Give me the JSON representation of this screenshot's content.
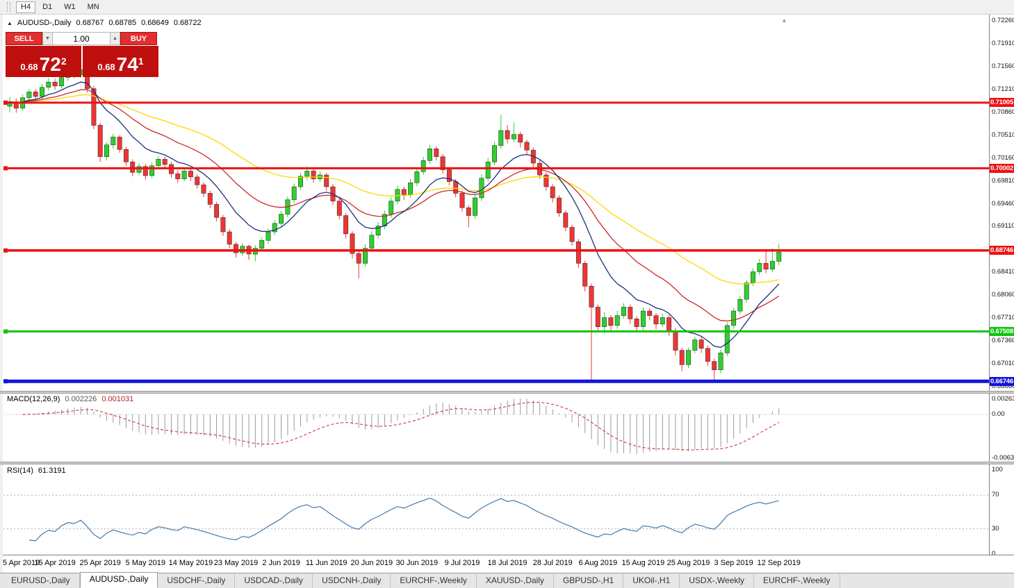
{
  "toolbar": {
    "timeframes": [
      "H4",
      "D1",
      "W1",
      "MN"
    ],
    "boxed_timeframe": "H4"
  },
  "glyphs": {
    "collapse": "▲",
    "spinner_down": "▼",
    "spinner_up": "▲",
    "mini_collapse": "▴"
  },
  "chart_header": {
    "symbol": "AUDUSD-,Daily",
    "open": "0.68767",
    "high": "0.68785",
    "low": "0.68649",
    "close": "0.68722"
  },
  "trade_panel": {
    "sell_label": "SELL",
    "buy_label": "BUY",
    "volume": "1.00",
    "sell_price_small": "0.68",
    "sell_price_big": "72",
    "sell_price_sup": "2",
    "buy_price_small": "0.68",
    "buy_price_big": "74",
    "buy_price_sup": "1"
  },
  "colors": {
    "up": "#2fcf2f",
    "down": "#ef3535",
    "ma_fast": "#1c2e7b",
    "ma_mid": "#cc2929",
    "ma_slow": "#ffd800",
    "macd_hist": "#9a9a9a",
    "macd_signal": "#cc3333",
    "rsi": "#4579a8",
    "line_red": "#ee1111",
    "line_green": "#0fc40f",
    "line_blue": "#1313dd"
  },
  "hlines": [
    {
      "price": 0.71005,
      "label": "0.71005",
      "color": "#ee1111",
      "width": 3
    },
    {
      "price": 0.70002,
      "label": "0.70002",
      "color": "#ee1111",
      "width": 3
    },
    {
      "price": 0.68746,
      "label": "0.68746",
      "color": "#ee1111",
      "width": 3.5
    },
    {
      "price": 0.67508,
      "label": "0.67508",
      "color": "#0fc40f",
      "width": 3
    },
    {
      "price": 0.66746,
      "label": "0.66746",
      "color": "#1313dd",
      "width": 5
    }
  ],
  "price_axis": {
    "labels": [
      "0.72260",
      "0.71910",
      "0.71560",
      "0.71210",
      "0.70860",
      "0.70510",
      "0.70160",
      "0.69810",
      "0.69460",
      "0.69110",
      "0.68760",
      "0.68410",
      "0.68060",
      "0.67710",
      "0.67360",
      "0.67010",
      "0.66660"
    ]
  },
  "macd_panel": {
    "label": "MACD(12,26,9)",
    "value_main": "0.002226",
    "value_signal": "0.001031",
    "axis_labels": [
      "0.00263",
      "0.00",
      "-0.00632"
    ]
  },
  "rsi_panel": {
    "label": "RSI(14)",
    "value": "61.3191",
    "axis_labels": [
      "100",
      "70",
      "30",
      "0"
    ],
    "levels": [
      70,
      30
    ]
  },
  "chart_data": {
    "type": "candlestick",
    "symbol": "AUDUSD",
    "timeframe": "Daily",
    "price_min": 0.666,
    "price_max": 0.7232,
    "price_scale_divisor": 10000,
    "date_labels": [
      "5 Apr 2019",
      "15 Apr 2019",
      "25 Apr 2019",
      "5 May 2019",
      "14 May 2019",
      "23 May 2019",
      "2 Jun 2019",
      "11 Jun 2019",
      "20 Jun 2019",
      "30 Jun 2019",
      "9 Jul 2019",
      "18 Jul 2019",
      "28 Jul 2019",
      "6 Aug 2019",
      "15 Aug 2019",
      "25 Aug 2019",
      "3 Sep 2019",
      "12 Sep 2019"
    ],
    "bars_per_label": 7,
    "moving_averages": [
      {
        "period": 45,
        "color_key": "ma_slow"
      },
      {
        "period": 22,
        "color_key": "ma_mid"
      },
      {
        "period": 10,
        "color_key": "ma_fast"
      }
    ],
    "candles": [
      [
        7095,
        7109,
        7086,
        7102
      ],
      [
        7102,
        7107,
        7085,
        7092
      ],
      [
        7092,
        7113,
        7088,
        7108
      ],
      [
        7108,
        7122,
        7103,
        7117
      ],
      [
        7117,
        7121,
        7103,
        7110
      ],
      [
        7110,
        7129,
        7106,
        7124
      ],
      [
        7124,
        7138,
        7119,
        7132
      ],
      [
        7132,
        7137,
        7120,
        7126
      ],
      [
        7126,
        7144,
        7122,
        7139
      ],
      [
        7139,
        7152,
        7134,
        7147
      ],
      [
        7147,
        7153,
        7138,
        7143
      ],
      [
        7143,
        7158,
        7139,
        7151
      ],
      [
        7151,
        7154,
        7116,
        7122
      ],
      [
        7122,
        7126,
        7060,
        7066
      ],
      [
        7066,
        7070,
        7010,
        7018
      ],
      [
        7018,
        7040,
        7012,
        7036
      ],
      [
        7036,
        7053,
        7030,
        7048
      ],
      [
        7048,
        7051,
        7024,
        7029
      ],
      [
        7029,
        7033,
        7004,
        7010
      ],
      [
        7010,
        7014,
        6988,
        6994
      ],
      [
        6994,
        7008,
        6989,
        7003
      ],
      [
        7003,
        7007,
        6983,
        6989
      ],
      [
        6989,
        7009,
        6985,
        7004
      ],
      [
        7004,
        7019,
        6999,
        7014
      ],
      [
        7014,
        7018,
        7000,
        7006
      ],
      [
        7006,
        7010,
        6986,
        6992
      ],
      [
        6992,
        6997,
        6978,
        6984
      ],
      [
        6984,
        7001,
        6980,
        6996
      ],
      [
        6996,
        6999,
        6981,
        6987
      ],
      [
        6987,
        6991,
        6969,
        6975
      ],
      [
        6975,
        6979,
        6956,
        6962
      ],
      [
        6962,
        6966,
        6939,
        6945
      ],
      [
        6945,
        6949,
        6919,
        6925
      ],
      [
        6925,
        6929,
        6897,
        6903
      ],
      [
        6903,
        6907,
        6878,
        6884
      ],
      [
        6884,
        6888,
        6864,
        6871
      ],
      [
        6871,
        6886,
        6866,
        6881
      ],
      [
        6881,
        6884,
        6860,
        6869
      ],
      [
        6869,
        6883,
        6858,
        6878
      ],
      [
        6878,
        6895,
        6873,
        6890
      ],
      [
        6890,
        6908,
        6885,
        6903
      ],
      [
        6903,
        6921,
        6898,
        6916
      ],
      [
        6916,
        6935,
        6911,
        6930
      ],
      [
        6930,
        6957,
        6925,
        6952
      ],
      [
        6952,
        6977,
        6947,
        6972
      ],
      [
        6972,
        6993,
        6967,
        6988
      ],
      [
        6988,
        7003,
        6982,
        6996
      ],
      [
        6996,
        7000,
        6978,
        6984
      ],
      [
        6984,
        6996,
        6979,
        6990
      ],
      [
        6990,
        6993,
        6966,
        6972
      ],
      [
        6972,
        6976,
        6944,
        6950
      ],
      [
        6950,
        6954,
        6922,
        6928
      ],
      [
        6928,
        6932,
        6893,
        6900
      ],
      [
        6900,
        6904,
        6862,
        6870
      ],
      [
        6870,
        6874,
        6832,
        6855
      ],
      [
        6855,
        6884,
        6850,
        6878
      ],
      [
        6878,
        6904,
        6873,
        6898
      ],
      [
        6898,
        6918,
        6893,
        6912
      ],
      [
        6912,
        6936,
        6907,
        6930
      ],
      [
        6930,
        6956,
        6925,
        6950
      ],
      [
        6950,
        6974,
        6945,
        6968
      ],
      [
        6968,
        6972,
        6952,
        6960
      ],
      [
        6960,
        6984,
        6955,
        6978
      ],
      [
        6978,
        7001,
        6973,
        6995
      ],
      [
        6995,
        7018,
        6990,
        7012
      ],
      [
        7012,
        7036,
        7007,
        7030
      ],
      [
        7030,
        7034,
        7012,
        7018
      ],
      [
        7018,
        7022,
        6992,
        6998
      ],
      [
        6998,
        7002,
        6974,
        6980
      ],
      [
        6980,
        6984,
        6956,
        6962
      ],
      [
        6962,
        6966,
        6934,
        6940
      ],
      [
        6940,
        6944,
        6910,
        6928
      ],
      [
        6928,
        6961,
        6923,
        6955
      ],
      [
        6955,
        6991,
        6950,
        6985
      ],
      [
        6985,
        7016,
        6980,
        7010
      ],
      [
        7010,
        7041,
        7005,
        7035
      ],
      [
        7035,
        7082,
        7030,
        7058
      ],
      [
        7058,
        7066,
        7038,
        7045
      ],
      [
        7045,
        7070,
        7040,
        7052
      ],
      [
        7052,
        7056,
        7032,
        7040
      ],
      [
        7040,
        7044,
        7020,
        7028
      ],
      [
        7028,
        7032,
        7002,
        7008
      ],
      [
        7008,
        7012,
        6984,
        6990
      ],
      [
        6990,
        6994,
        6966,
        6972
      ],
      [
        6972,
        6976,
        6948,
        6955
      ],
      [
        6955,
        6959,
        6926,
        6932
      ],
      [
        6932,
        6936,
        6904,
        6910
      ],
      [
        6910,
        6914,
        6882,
        6888
      ],
      [
        6888,
        6892,
        6848,
        6855
      ],
      [
        6855,
        6859,
        6812,
        6820
      ],
      [
        6820,
        6824,
        6677,
        6788
      ],
      [
        6788,
        6792,
        6750,
        6758
      ],
      [
        6758,
        6780,
        6748,
        6772
      ],
      [
        6772,
        6776,
        6752,
        6760
      ],
      [
        6760,
        6782,
        6755,
        6775
      ],
      [
        6775,
        6794,
        6770,
        6788
      ],
      [
        6788,
        6792,
        6762,
        6770
      ],
      [
        6770,
        6774,
        6750,
        6758
      ],
      [
        6758,
        6788,
        6753,
        6782
      ],
      [
        6782,
        6786,
        6768,
        6775
      ],
      [
        6775,
        6779,
        6754,
        6762
      ],
      [
        6762,
        6778,
        6757,
        6772
      ],
      [
        6772,
        6776,
        6744,
        6752
      ],
      [
        6752,
        6756,
        6714,
        6722
      ],
      [
        6722,
        6726,
        6690,
        6700
      ],
      [
        6700,
        6726,
        6695,
        6722
      ],
      [
        6722,
        6743,
        6717,
        6738
      ],
      [
        6738,
        6742,
        6718,
        6725
      ],
      [
        6725,
        6729,
        6698,
        6705
      ],
      [
        6705,
        6709,
        6677,
        6692
      ],
      [
        6692,
        6723,
        6687,
        6718
      ],
      [
        6718,
        6765,
        6713,
        6760
      ],
      [
        6760,
        6787,
        6755,
        6782
      ],
      [
        6782,
        6805,
        6777,
        6800
      ],
      [
        6800,
        6830,
        6795,
        6825
      ],
      [
        6825,
        6847,
        6820,
        6842
      ],
      [
        6842,
        6862,
        6837,
        6855
      ],
      [
        6855,
        6876,
        6840,
        6846
      ],
      [
        6846,
        6878,
        6841,
        6858
      ],
      [
        6858,
        6885,
        6852,
        6872
      ]
    ]
  },
  "tabs": [
    {
      "label": "EURUSD-,Daily",
      "active": false
    },
    {
      "label": "AUDUSD-,Daily",
      "active": true
    },
    {
      "label": "USDCHF-,Daily",
      "active": false
    },
    {
      "label": "USDCAD-,Daily",
      "active": false
    },
    {
      "label": "USDCNH-,Daily",
      "active": false
    },
    {
      "label": "EURCHF-,Weekly",
      "active": false
    },
    {
      "label": "XAUUSD-,Daily",
      "active": false
    },
    {
      "label": "GBPUSD-,H1",
      "active": false
    },
    {
      "label": "UKOil-,H1",
      "active": false
    },
    {
      "label": "USDX-,Weekly",
      "active": false
    },
    {
      "label": "EURCHF-,Weekly",
      "active": false
    }
  ]
}
